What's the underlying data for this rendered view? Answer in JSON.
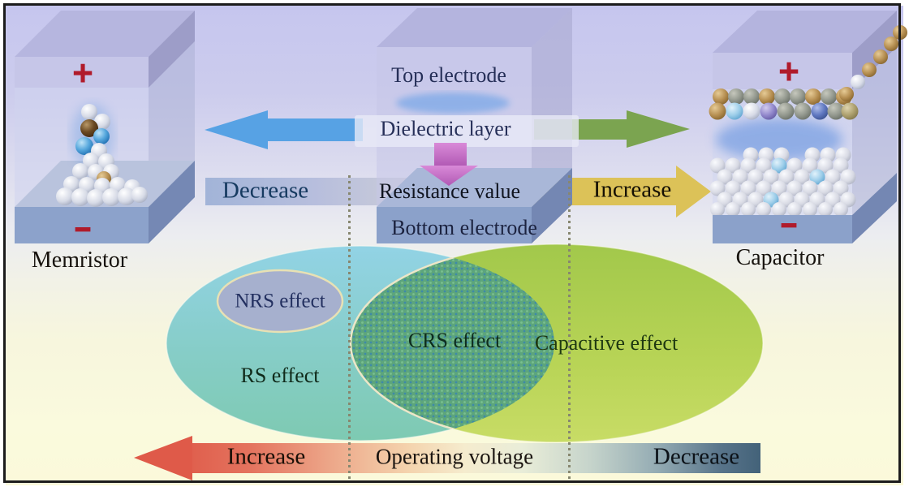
{
  "memristor": {
    "label": "Memristor",
    "plus": "+",
    "minus": "−"
  },
  "capacitor": {
    "label": "Capacitor",
    "plus": "+",
    "minus": "−"
  },
  "stack": {
    "top_electrode": "Top electrode",
    "dielectric_layer": "Dielectric layer",
    "bottom_electrode": "Bottom electrode"
  },
  "resistance_axis": {
    "title": "Resistance value",
    "left": "Decrease",
    "right": "Increase"
  },
  "voltage_axis": {
    "title": "Operating voltage",
    "left": "Increase",
    "right": "Decrease"
  },
  "venn": {
    "rs": "RS effect",
    "nrs": "NRS effect",
    "crs": "CRS effect",
    "capacitive": "Capacitive effect"
  },
  "colors": {
    "background_top": "#c6c6ee",
    "background_bottom": "#fbf9da",
    "frame_border": "#1c1c1c",
    "polarity_red": "#b01b2b",
    "arrow_blue": "#57a2e4",
    "arrow_green": "#7ba450",
    "arrow_yellow": "#dcc258",
    "arrow_pink": "#c26fc4",
    "arrow_red": "#df5a49",
    "resistance_bar_left": "#a2b4d8",
    "resistance_bar_right": "#d8c766",
    "voltage_bar_dark": "#436279",
    "box_lavender": "#c4c4e6",
    "electrode_slab_blue": "#8ba1ca",
    "venn_left_top": "#92d3e5",
    "venn_left_bottom": "#7ecab2",
    "venn_right_top": "#a2c84b",
    "venn_right_bottom": "#c8dc66",
    "venn_overlap_green": "#5da57c",
    "venn_overlap_dot": "#3e8aa8",
    "nrs_fill": "#a6b0ce",
    "nrs_border": "#e8e1b4"
  }
}
